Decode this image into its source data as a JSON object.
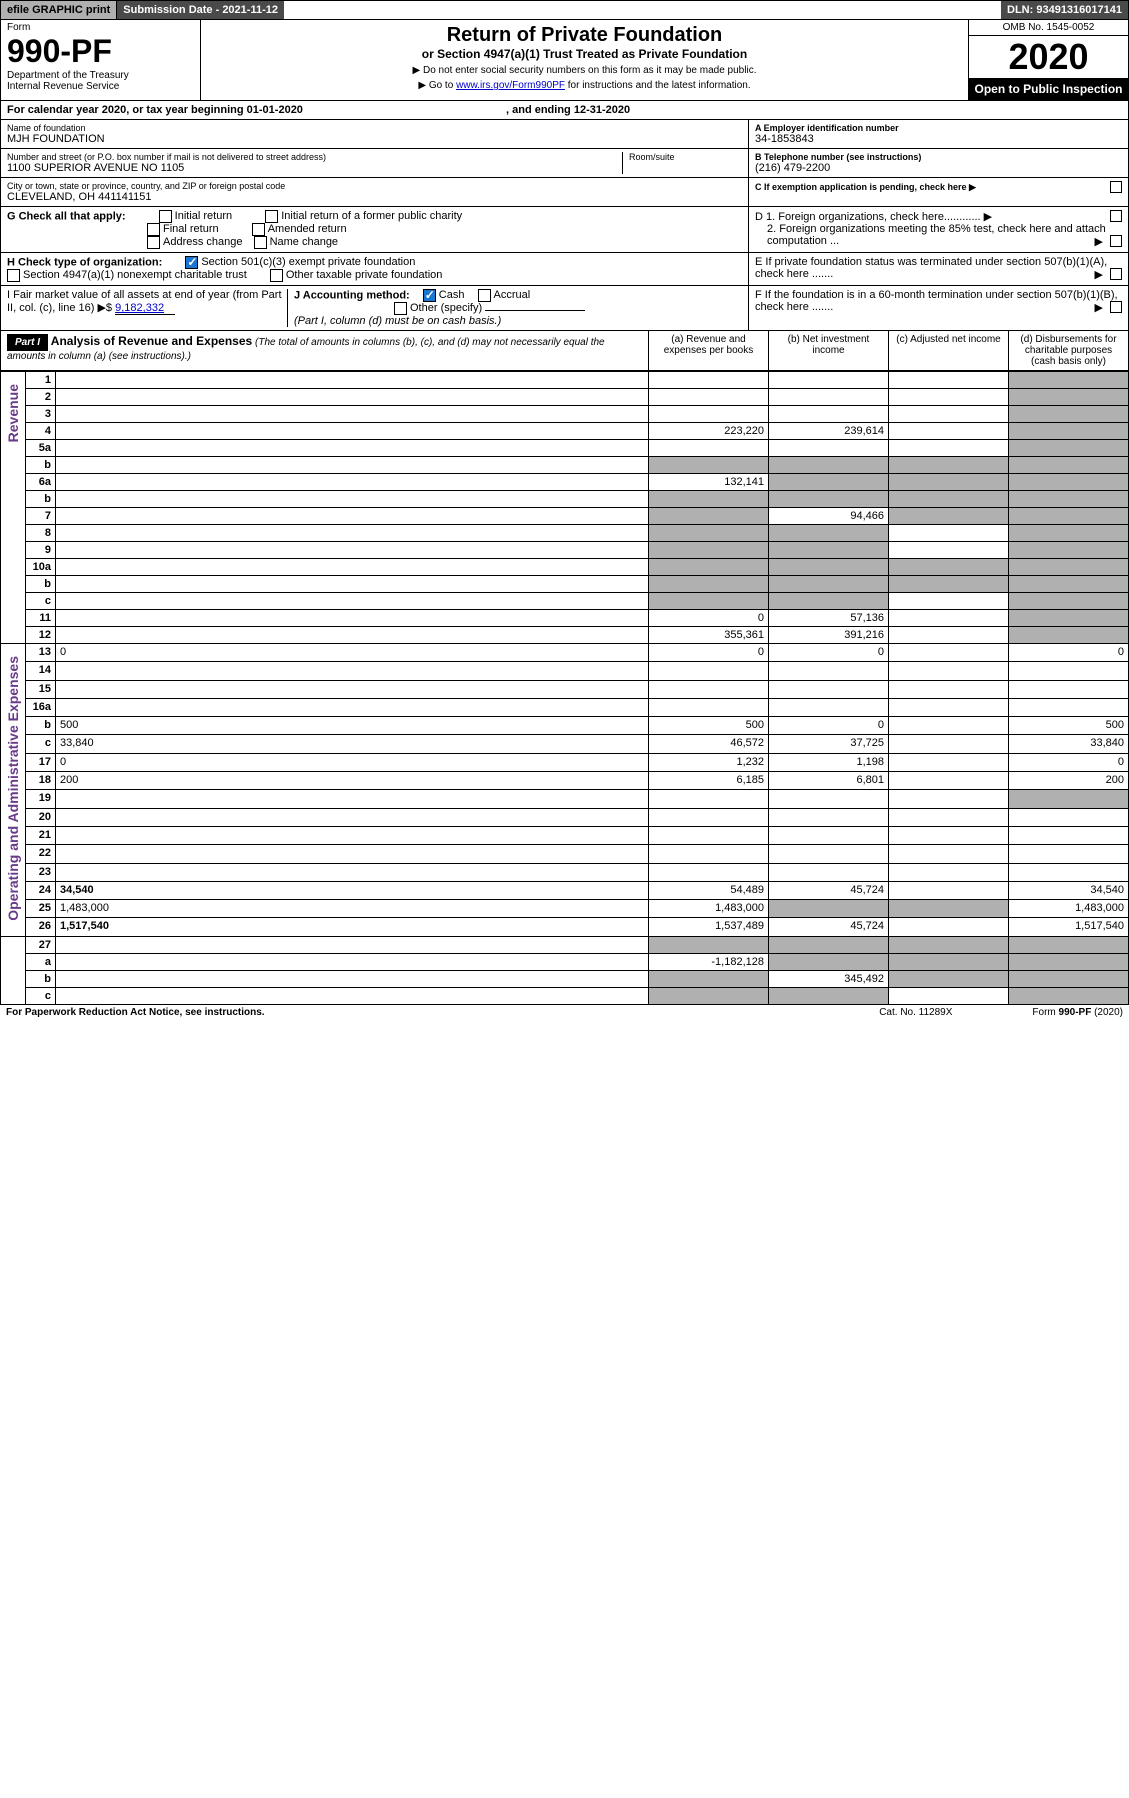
{
  "top": {
    "efile": "efile GRAPHIC print",
    "submission": "Submission Date - 2021-11-12",
    "dln": "DLN: 93491316017141"
  },
  "hdr": {
    "form_label": "Form",
    "form_num": "990-PF",
    "dept": "Department of the Treasury",
    "irs": "Internal Revenue Service",
    "title": "Return of Private Foundation",
    "subtitle": "or Section 4947(a)(1) Trust Treated as Private Foundation",
    "note1": "▶ Do not enter social security numbers on this form as it may be made public.",
    "note2_pre": "▶ Go to ",
    "note2_link": "www.irs.gov/Form990PF",
    "note2_post": " for instructions and the latest information.",
    "omb": "OMB No. 1545-0052",
    "year": "2020",
    "open": "Open to Public Inspection"
  },
  "cal": {
    "label_pre": "For calendar year 2020, or tax year beginning ",
    "begin": "01-01-2020",
    "label_mid": " , and ending ",
    "end": "12-31-2020"
  },
  "info": {
    "name_lbl": "Name of foundation",
    "name": "MJH FOUNDATION",
    "addr_lbl": "Number and street (or P.O. box number if mail is not delivered to street address)",
    "addr": "1100 SUPERIOR AVENUE NO 1105",
    "room_lbl": "Room/suite",
    "city_lbl": "City or town, state or province, country, and ZIP or foreign postal code",
    "city": "CLEVELAND, OH  441141151",
    "ein_lbl": "A Employer identification number",
    "ein": "34-1853843",
    "tel_lbl": "B Telephone number (see instructions)",
    "tel": "(216) 479-2200",
    "c_lbl": "C If exemption application is pending, check here ▶"
  },
  "g": {
    "lbl": "G Check all that apply:",
    "initial": "Initial return",
    "initial_former": "Initial return of a former public charity",
    "final": "Final return",
    "amended": "Amended return",
    "addr_change": "Address change",
    "name_change": "Name change"
  },
  "d": {
    "d1": "D 1. Foreign organizations, check here............",
    "d2": "2. Foreign organizations meeting the 85% test, check here and attach computation ...",
    "e": "E  If private foundation status was terminated under section 507(b)(1)(A), check here .......",
    "f": "F  If the foundation is in a 60-month termination under section 507(b)(1)(B), check here ......."
  },
  "h": {
    "lbl": "H Check type of organization:",
    "501c3": "Section 501(c)(3) exempt private foundation",
    "4947": "Section 4947(a)(1) nonexempt charitable trust",
    "other_tax": "Other taxable private foundation"
  },
  "i": {
    "lbl": "I Fair market value of all assets at end of year (from Part II, col. (c), line 16) ▶$",
    "val": "9,182,332"
  },
  "j": {
    "lbl": "J Accounting method:",
    "cash": "Cash",
    "accrual": "Accrual",
    "other": "Other (specify)",
    "note": "(Part I, column (d) must be on cash basis.)"
  },
  "part1": {
    "hdr": "Part I",
    "title": "Analysis of Revenue and Expenses",
    "desc": " (The total of amounts in columns (b), (c), and (d) may not necessarily equal the amounts in column (a) (see instructions).)",
    "col_a": "(a) Revenue and expenses per books",
    "col_b": "(b) Net investment income",
    "col_c": "(c) Adjusted net income",
    "col_d": "(d) Disbursements for charitable purposes (cash basis only)"
  },
  "vert": {
    "rev": "Revenue",
    "exp": "Operating and Administrative Expenses"
  },
  "rows": [
    {
      "n": "1",
      "d": "",
      "a": "",
      "b": "",
      "c": "",
      "dg": true
    },
    {
      "n": "2",
      "d": "",
      "a": "",
      "b": "",
      "c": "",
      "dg": true,
      "bold_not": true
    },
    {
      "n": "3",
      "d": "",
      "a": "",
      "b": "",
      "c": "",
      "dg": true
    },
    {
      "n": "4",
      "d": "",
      "a": "223,220",
      "b": "239,614",
      "c": "",
      "dg": true
    },
    {
      "n": "5a",
      "d": "",
      "a": "",
      "b": "",
      "c": "",
      "dg": true
    },
    {
      "n": "b",
      "d": "",
      "a": "",
      "b": "",
      "c": "",
      "dg": true,
      "ag": true,
      "bg": true,
      "cg": true
    },
    {
      "n": "6a",
      "d": "",
      "a": "132,141",
      "b": "",
      "c": "",
      "dg": true,
      "bg": true,
      "cg": true
    },
    {
      "n": "b",
      "d": "",
      "a": "",
      "b": "",
      "c": "",
      "dg": true,
      "ag": true,
      "bg": true,
      "cg": true
    },
    {
      "n": "7",
      "d": "",
      "a": "",
      "b": "94,466",
      "c": "",
      "dg": true,
      "ag": true,
      "cg": true
    },
    {
      "n": "8",
      "d": "",
      "a": "",
      "b": "",
      "c": "",
      "dg": true,
      "ag": true,
      "bg": true
    },
    {
      "n": "9",
      "d": "",
      "a": "",
      "b": "",
      "c": "",
      "dg": true,
      "ag": true,
      "bg": true
    },
    {
      "n": "10a",
      "d": "",
      "a": "",
      "b": "",
      "c": "",
      "dg": true,
      "ag": true,
      "bg": true,
      "cg": true
    },
    {
      "n": "b",
      "d": "",
      "a": "",
      "b": "",
      "c": "",
      "dg": true,
      "ag": true,
      "bg": true,
      "cg": true
    },
    {
      "n": "c",
      "d": "",
      "a": "",
      "b": "",
      "c": "",
      "dg": true,
      "ag": true,
      "bg": true
    },
    {
      "n": "11",
      "d": "",
      "a": "0",
      "b": "57,136",
      "c": "",
      "dg": true
    },
    {
      "n": "12",
      "d": "",
      "a": "355,361",
      "b": "391,216",
      "c": "",
      "dg": true,
      "bold": true
    }
  ],
  "exp_rows": [
    {
      "n": "13",
      "d": "0",
      "a": "0",
      "b": "0",
      "c": ""
    },
    {
      "n": "14",
      "d": "",
      "a": "",
      "b": "",
      "c": ""
    },
    {
      "n": "15",
      "d": "",
      "a": "",
      "b": "",
      "c": ""
    },
    {
      "n": "16a",
      "d": "",
      "a": "",
      "b": "",
      "c": ""
    },
    {
      "n": "b",
      "d": "500",
      "a": "500",
      "b": "0",
      "c": ""
    },
    {
      "n": "c",
      "d": "33,840",
      "a": "46,572",
      "b": "37,725",
      "c": ""
    },
    {
      "n": "17",
      "d": "0",
      "a": "1,232",
      "b": "1,198",
      "c": ""
    },
    {
      "n": "18",
      "d": "200",
      "a": "6,185",
      "b": "6,801",
      "c": ""
    },
    {
      "n": "19",
      "d": "",
      "a": "",
      "b": "",
      "c": "",
      "dg": true
    },
    {
      "n": "20",
      "d": "",
      "a": "",
      "b": "",
      "c": ""
    },
    {
      "n": "21",
      "d": "",
      "a": "",
      "b": "",
      "c": ""
    },
    {
      "n": "22",
      "d": "",
      "a": "",
      "b": "",
      "c": ""
    },
    {
      "n": "23",
      "d": "",
      "a": "",
      "b": "",
      "c": ""
    },
    {
      "n": "24",
      "d": "34,540",
      "a": "54,489",
      "b": "45,724",
      "c": "",
      "bold": true
    },
    {
      "n": "25",
      "d": "1,483,000",
      "a": "1,483,000",
      "b": "",
      "c": "",
      "bg": true,
      "cg": true
    },
    {
      "n": "26",
      "d": "1,517,540",
      "a": "1,537,489",
      "b": "45,724",
      "c": "",
      "bold": true
    }
  ],
  "bot_rows": [
    {
      "n": "27",
      "d": "",
      "a": "",
      "b": "",
      "c": "",
      "ag": true,
      "bg": true,
      "cg": true,
      "dg": true
    },
    {
      "n": "a",
      "d": "",
      "a": "-1,182,128",
      "b": "",
      "c": "",
      "bg": true,
      "cg": true,
      "dg": true,
      "bold": true
    },
    {
      "n": "b",
      "d": "",
      "a": "",
      "b": "345,492",
      "c": "",
      "ag": true,
      "cg": true,
      "dg": true,
      "bold": true
    },
    {
      "n": "c",
      "d": "",
      "a": "",
      "b": "",
      "c": "",
      "ag": true,
      "bg": true,
      "dg": true,
      "bold": true
    }
  ],
  "footer": {
    "left": "For Paperwork Reduction Act Notice, see instructions.",
    "center": "Cat. No. 11289X",
    "right": "Form 990-PF (2020)"
  }
}
